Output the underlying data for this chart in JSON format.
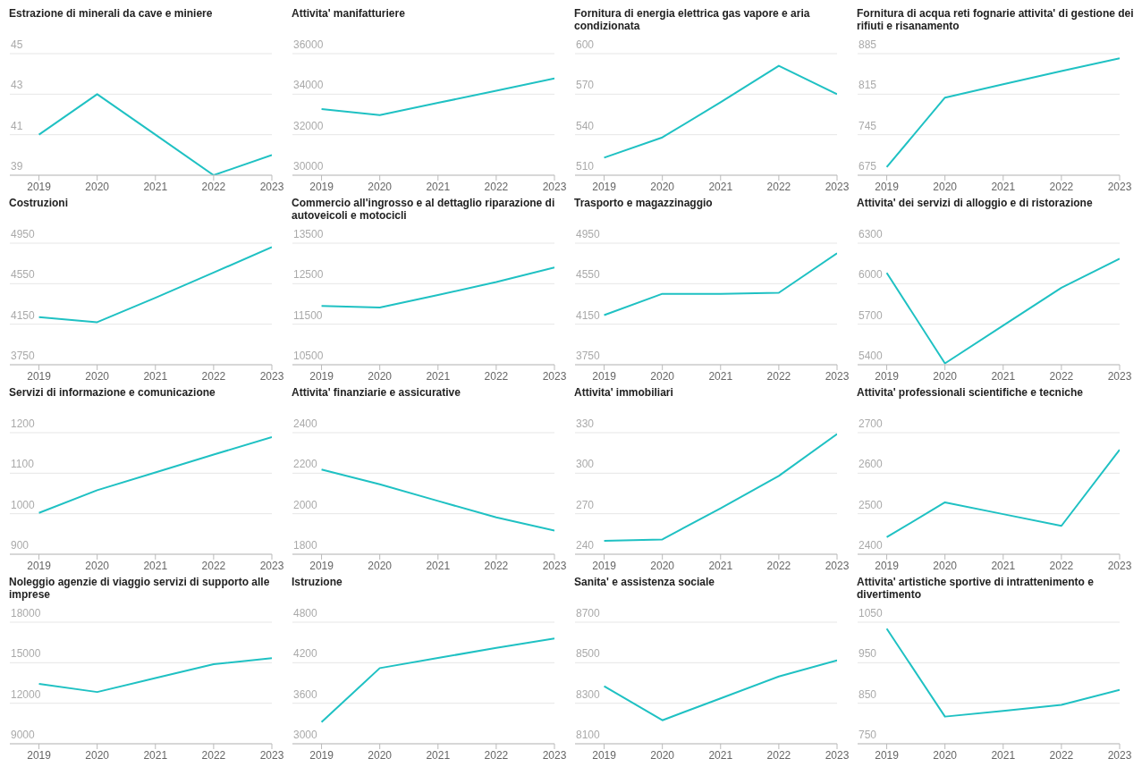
{
  "chart_data": [
    {
      "type": "line",
      "title": "Estrazione di minerali da cave e miniere",
      "x": [
        2019,
        2020,
        2021,
        2022,
        2023
      ],
      "values": [
        41,
        43,
        41,
        39,
        40
      ],
      "color": "#1fc1c3",
      "xlim": [
        2018.5,
        2023
      ],
      "xticks": [
        2019,
        2020,
        2021,
        2022,
        2023
      ],
      "ylim": [
        39,
        45
      ],
      "yticks": [
        39,
        41,
        43,
        45
      ],
      "grid": "y"
    },
    {
      "type": "line",
      "title": "Attivita' manifatturiere",
      "x": [
        2019,
        2020,
        2021,
        2022,
        2023
      ],
      "values": [
        33260,
        32970,
        33570,
        34170,
        34780
      ],
      "color": "#1fc1c3",
      "xlim": [
        2018.5,
        2023
      ],
      "xticks": [
        2019,
        2020,
        2021,
        2022,
        2023
      ],
      "ylim": [
        30000,
        36000
      ],
      "yticks": [
        30000,
        32000,
        34000,
        36000
      ],
      "grid": "y"
    },
    {
      "type": "line",
      "title": "Fornitura di energia elettrica gas vapore e aria condizionata",
      "x": [
        2019,
        2020,
        2021,
        2022,
        2023
      ],
      "values": [
        523,
        538,
        564,
        591,
        570
      ],
      "color": "#1fc1c3",
      "xlim": [
        2018.5,
        2023
      ],
      "xticks": [
        2019,
        2020,
        2021,
        2022,
        2023
      ],
      "ylim": [
        510,
        600
      ],
      "yticks": [
        510,
        540,
        570,
        600
      ],
      "grid": "y"
    },
    {
      "type": "line",
      "title": "Fornitura di acqua reti fognarie attivita' di gestione dei rifiuti e risanamento",
      "x": [
        2019,
        2020,
        2021,
        2022,
        2023
      ],
      "values": [
        689,
        809,
        832,
        855,
        877
      ],
      "color": "#1fc1c3",
      "xlim": [
        2018.5,
        2023
      ],
      "xticks": [
        2019,
        2020,
        2021,
        2022,
        2023
      ],
      "ylim": [
        675,
        885
      ],
      "yticks": [
        675,
        745,
        815,
        885
      ],
      "grid": "y"
    },
    {
      "type": "line",
      "title": "Costruzioni",
      "x": [
        2019,
        2020,
        2021,
        2022,
        2023
      ],
      "values": [
        4220,
        4170,
        4410,
        4660,
        4910
      ],
      "color": "#1fc1c3",
      "xlim": [
        2018.5,
        2023
      ],
      "xticks": [
        2019,
        2020,
        2021,
        2022,
        2023
      ],
      "ylim": [
        3750,
        4950
      ],
      "yticks": [
        3750,
        4150,
        4550,
        4950
      ],
      "grid": "y"
    },
    {
      "type": "line",
      "title": "Commercio all'ingrosso e al dettaglio riparazione di autoveicoli e motocicli",
      "x": [
        2019,
        2020,
        2021,
        2022,
        2023
      ],
      "values": [
        11950,
        11910,
        12220,
        12540,
        12900
      ],
      "color": "#1fc1c3",
      "xlim": [
        2018.5,
        2023
      ],
      "xticks": [
        2019,
        2020,
        2021,
        2022,
        2023
      ],
      "ylim": [
        10500,
        13500
      ],
      "yticks": [
        10500,
        11500,
        12500,
        13500
      ],
      "grid": "y"
    },
    {
      "type": "line",
      "title": "Trasporto e magazzinaggio",
      "x": [
        2019,
        2020,
        2021,
        2022,
        2023
      ],
      "values": [
        4240,
        4450,
        4450,
        4460,
        4850
      ],
      "color": "#1fc1c3",
      "xlim": [
        2018.5,
        2023
      ],
      "xticks": [
        2019,
        2020,
        2021,
        2022,
        2023
      ],
      "ylim": [
        3750,
        4950
      ],
      "yticks": [
        3750,
        4150,
        4550,
        4950
      ],
      "grid": "y"
    },
    {
      "type": "line",
      "title": "Attivita' dei servizi di alloggio e di ristorazione",
      "x": [
        2019,
        2020,
        2021,
        2022,
        2023
      ],
      "values": [
        6080,
        5410,
        5690,
        5970,
        6185
      ],
      "color": "#1fc1c3",
      "xlim": [
        2018.5,
        2023
      ],
      "xticks": [
        2019,
        2020,
        2021,
        2022,
        2023
      ],
      "ylim": [
        5400,
        6300
      ],
      "yticks": [
        5400,
        5700,
        6000,
        6300
      ],
      "grid": "y"
    },
    {
      "type": "line",
      "title": "Servizi di informazione e comunicazione",
      "x": [
        2019,
        2020,
        2021,
        2022,
        2023
      ],
      "values": [
        1002,
        1058,
        1102,
        1146,
        1189
      ],
      "color": "#1fc1c3",
      "xlim": [
        2018.5,
        2023
      ],
      "xticks": [
        2019,
        2020,
        2021,
        2022,
        2023
      ],
      "ylim": [
        900,
        1200
      ],
      "yticks": [
        900,
        1000,
        1100,
        1200
      ],
      "grid": "y"
    },
    {
      "type": "line",
      "title": "Attivita' finanziarie e assicurative",
      "x": [
        2019,
        2020,
        2021,
        2022,
        2023
      ],
      "values": [
        2218,
        2145,
        2063,
        1982,
        1917
      ],
      "color": "#1fc1c3",
      "xlim": [
        2018.5,
        2023
      ],
      "xticks": [
        2019,
        2020,
        2021,
        2022,
        2023
      ],
      "ylim": [
        1800,
        2400
      ],
      "yticks": [
        1800,
        2000,
        2200,
        2400
      ],
      "grid": "y"
    },
    {
      "type": "line",
      "title": "Attivita' immobiliari",
      "x": [
        2019,
        2020,
        2021,
        2022,
        2023
      ],
      "values": [
        250,
        251,
        274,
        298,
        329
      ],
      "color": "#1fc1c3",
      "xlim": [
        2018.5,
        2023
      ],
      "xticks": [
        2019,
        2020,
        2021,
        2022,
        2023
      ],
      "ylim": [
        240,
        330
      ],
      "yticks": [
        240,
        270,
        300,
        330
      ],
      "grid": "y"
    },
    {
      "type": "line",
      "title": "Attivita' professionali scientifiche e tecniche",
      "x": [
        2019,
        2020,
        2021,
        2022,
        2023
      ],
      "values": [
        2442,
        2528,
        2499,
        2470,
        2658
      ],
      "color": "#1fc1c3",
      "xlim": [
        2018.5,
        2023
      ],
      "xticks": [
        2019,
        2020,
        2021,
        2022,
        2023
      ],
      "ylim": [
        2400,
        2700
      ],
      "yticks": [
        2400,
        2500,
        2600,
        2700
      ],
      "grid": "y"
    },
    {
      "type": "line",
      "title": "Noleggio agenzie di viaggio servizi di supporto alle imprese",
      "x": [
        2019,
        2020,
        2021,
        2022,
        2023
      ],
      "values": [
        13430,
        12830,
        13860,
        14890,
        15330
      ],
      "color": "#1fc1c3",
      "xlim": [
        2018.5,
        2023
      ],
      "xticks": [
        2019,
        2020,
        2021,
        2022,
        2023
      ],
      "ylim": [
        9000,
        18000
      ],
      "yticks": [
        9000,
        12000,
        15000,
        18000
      ],
      "grid": "y"
    },
    {
      "type": "line",
      "title": "Istruzione",
      "x": [
        2019,
        2020,
        2021,
        2022,
        2023
      ],
      "values": [
        3320,
        4120,
        4270,
        4420,
        4560
      ],
      "color": "#1fc1c3",
      "xlim": [
        2018.5,
        2023
      ],
      "xticks": [
        2019,
        2020,
        2021,
        2022,
        2023
      ],
      "ylim": [
        3000,
        4800
      ],
      "yticks": [
        3000,
        3600,
        4200,
        4800
      ],
      "grid": "y"
    },
    {
      "type": "line",
      "title": "Sanita' e assistenza sociale",
      "x": [
        2019,
        2020,
        2021,
        2022,
        2023
      ],
      "values": [
        8384,
        8216,
        8324,
        8432,
        8512
      ],
      "color": "#1fc1c3",
      "xlim": [
        2018.5,
        2023
      ],
      "xticks": [
        2019,
        2020,
        2021,
        2022,
        2023
      ],
      "ylim": [
        8100,
        8700
      ],
      "yticks": [
        8100,
        8300,
        8500,
        8700
      ],
      "grid": "y"
    },
    {
      "type": "line",
      "title": "Attivita' artistiche sportive di intrattenimento e divertimento",
      "x": [
        2019,
        2020,
        2021,
        2022,
        2023
      ],
      "values": [
        1034,
        817,
        831,
        846,
        883
      ],
      "color": "#1fc1c3",
      "xlim": [
        2018.5,
        2023
      ],
      "xticks": [
        2019,
        2020,
        2021,
        2022,
        2023
      ],
      "ylim": [
        750,
        1050
      ],
      "yticks": [
        750,
        850,
        950,
        1050
      ],
      "grid": "y"
    }
  ]
}
